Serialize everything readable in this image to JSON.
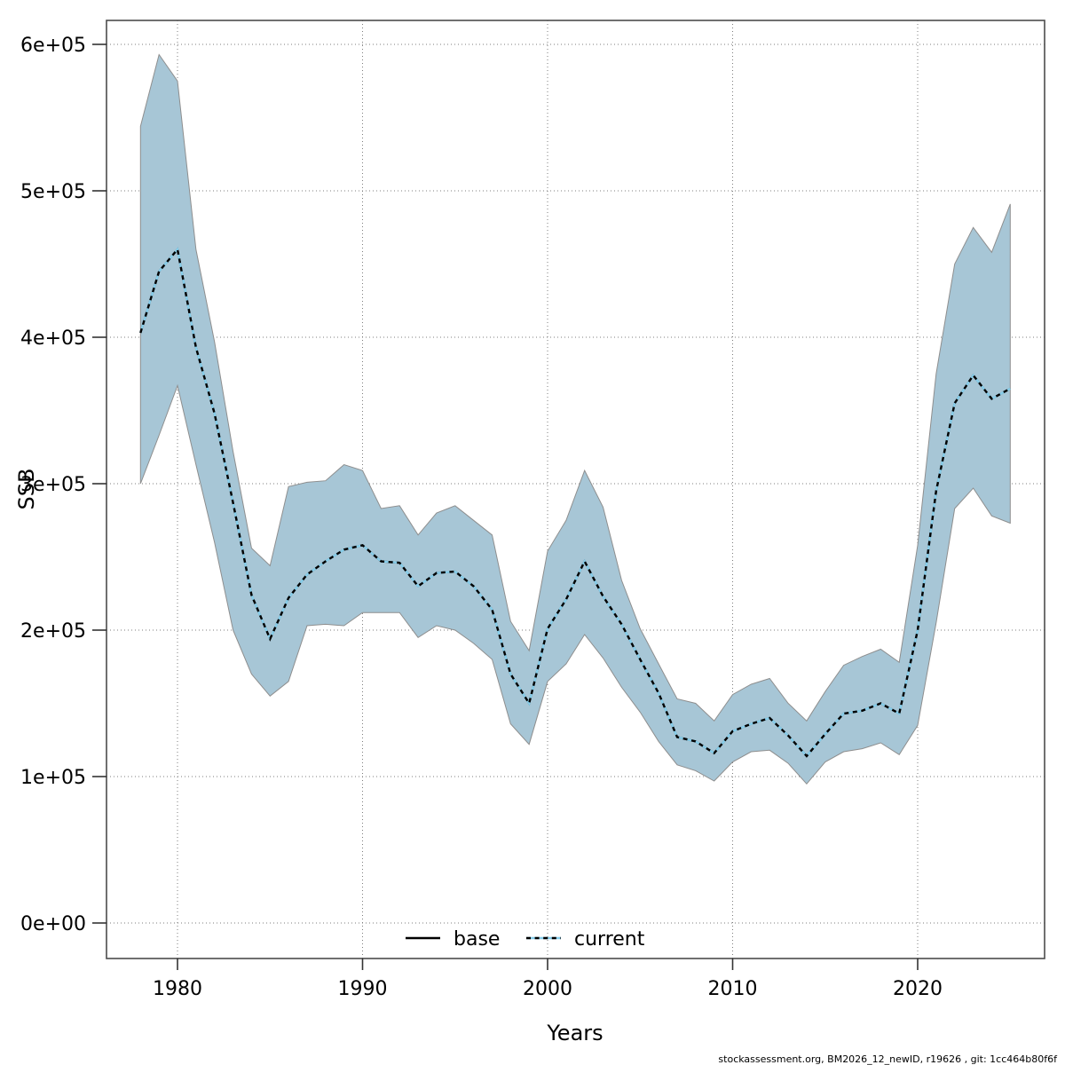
{
  "figure": {
    "title": "",
    "xlabel": "Years",
    "ylabel": "SSB",
    "footnote": "stockassessment.org, BM2026_12_newID, r19626 , git: 1cc464b80f6f",
    "legend": {
      "base_label": "base",
      "current_label": "current"
    }
  },
  "colors": {
    "band_fill": "#a7c6d6",
    "band_stroke": "#8e8e8e",
    "base_line": "#000000",
    "current_line_under": "#87ceeb",
    "current_line_dash": "#000000",
    "grid": "#7d7d7d",
    "border": "#4d4d4d",
    "tick": "#333333"
  },
  "chart_data": {
    "type": "line",
    "title": "",
    "xlabel": "Years",
    "ylabel": "SSB",
    "grid": "dotted",
    "legend_position": "bottom-center-inside",
    "xlim": [
      1976.2,
      2026.9
    ],
    "ylim": [
      -24000,
      616000
    ],
    "x_ticks": [
      1980,
      1990,
      2000,
      2010,
      2020
    ],
    "x_tick_labels": [
      "1980",
      "1990",
      "2000",
      "2010",
      "2020"
    ],
    "y_ticks": [
      {
        "value": 0,
        "label": "0e+00"
      },
      {
        "value": 100000,
        "label": "1e+05"
      },
      {
        "value": 200000,
        "label": "2e+05"
      },
      {
        "value": 300000,
        "label": "3e+05"
      },
      {
        "value": 400000,
        "label": "4e+05"
      },
      {
        "value": 500000,
        "label": "5e+05"
      },
      {
        "value": 600000,
        "label": "6e+05"
      }
    ],
    "x": [
      1978,
      1979,
      1980,
      1981,
      1982,
      1983,
      1984,
      1985,
      1986,
      1987,
      1988,
      1989,
      1990,
      1991,
      1992,
      1993,
      1994,
      1995,
      1996,
      1997,
      1998,
      1999,
      2000,
      2001,
      2002,
      2003,
      2004,
      2005,
      2006,
      2007,
      2008,
      2009,
      2010,
      2011,
      2012,
      2013,
      2014,
      2015,
      2016,
      2017,
      2018,
      2019,
      2020,
      2021,
      2022,
      2023,
      2024,
      2025
    ],
    "series": [
      {
        "name": "base",
        "style": "solid",
        "color": "#000000",
        "note": "coincides with current line in plot",
        "values": [
          403000,
          445000,
          460000,
          393000,
          348000,
          287000,
          224000,
          194000,
          222000,
          238000,
          247000,
          255000,
          258000,
          247000,
          246000,
          230000,
          239000,
          240000,
          230000,
          214000,
          170000,
          150000,
          201000,
          221000,
          247000,
          223000,
          204000,
          180000,
          157000,
          127000,
          124000,
          116000,
          131000,
          136000,
          140000,
          128000,
          114000,
          129000,
          143000,
          145000,
          150000,
          143000,
          200000,
          295000,
          355000,
          374000,
          358000,
          365000
        ]
      },
      {
        "name": "current",
        "style": "dotted",
        "color": "#87ceeb",
        "values": [
          403000,
          445000,
          460000,
          393000,
          348000,
          287000,
          224000,
          194000,
          222000,
          238000,
          247000,
          255000,
          258000,
          247000,
          246000,
          230000,
          239000,
          240000,
          230000,
          214000,
          170000,
          150000,
          201000,
          221000,
          247000,
          223000,
          204000,
          180000,
          157000,
          127000,
          124000,
          116000,
          131000,
          136000,
          140000,
          128000,
          114000,
          129000,
          143000,
          145000,
          150000,
          143000,
          200000,
          295000,
          355000,
          374000,
          358000,
          365000
        ]
      }
    ],
    "band": {
      "name": "current confidence interval",
      "fill": "#a7c6d6",
      "lower": [
        300000,
        333000,
        367000,
        313000,
        260000,
        200000,
        170000,
        155000,
        165000,
        203000,
        204000,
        203000,
        212000,
        212000,
        212000,
        195000,
        203000,
        200000,
        191000,
        180000,
        136000,
        122000,
        165000,
        177000,
        197000,
        181000,
        161000,
        144000,
        124000,
        108000,
        104000,
        97000,
        110000,
        117000,
        118000,
        109000,
        95000,
        110000,
        117000,
        119000,
        123000,
        115000,
        135000,
        205000,
        283000,
        297000,
        278000,
        273000
      ],
      "upper": [
        544000,
        593000,
        575000,
        460000,
        397000,
        322000,
        256000,
        244000,
        298000,
        301000,
        302000,
        313000,
        309000,
        283000,
        285000,
        265000,
        280000,
        285000,
        275000,
        265000,
        206000,
        186000,
        254000,
        275000,
        309000,
        284000,
        234000,
        201000,
        177000,
        153000,
        150000,
        138000,
        156000,
        163000,
        167000,
        150000,
        138000,
        158000,
        176000,
        182000,
        187000,
        178000,
        258000,
        375000,
        450000,
        475000,
        458000,
        491000
      ]
    }
  }
}
